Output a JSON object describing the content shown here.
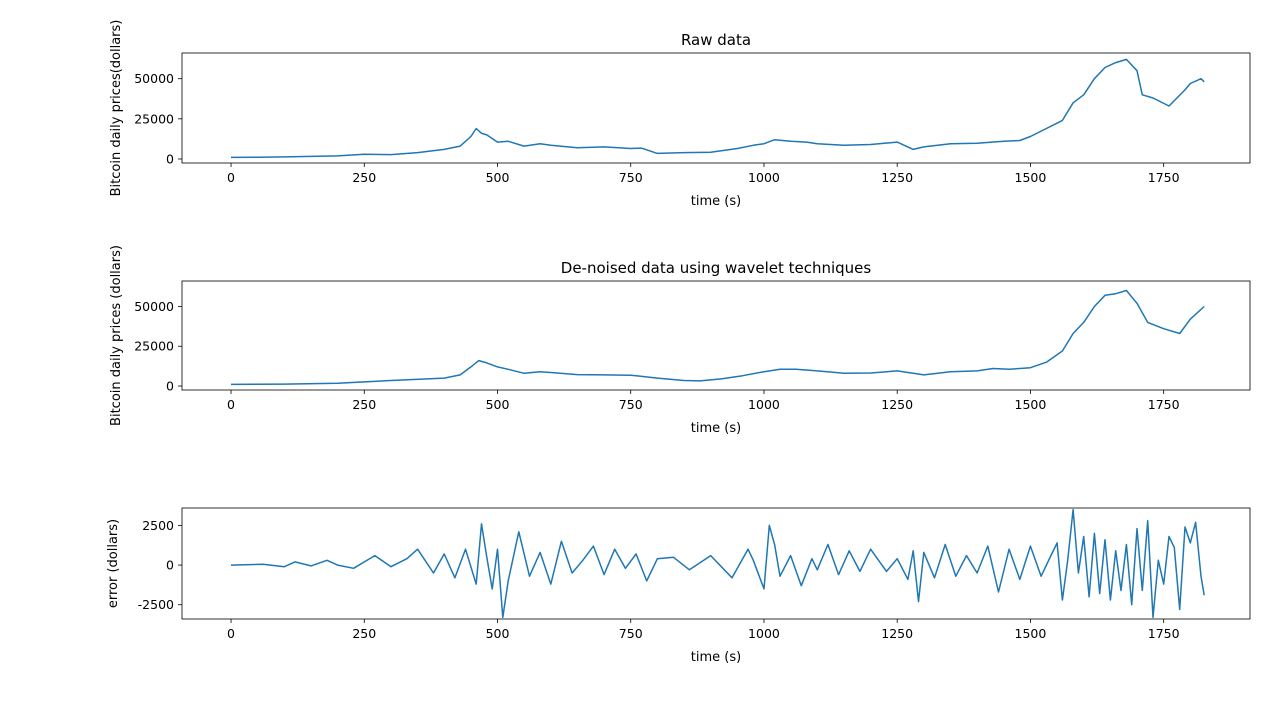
{
  "chart_data": [
    {
      "type": "line",
      "title": "Raw data",
      "xlabel": "time (s)",
      "ylabel": "Bitcoin daily prices(dollars)",
      "xlim": [
        -92,
        1912
      ],
      "ylim": [
        -2500,
        66000
      ],
      "xticks": [
        0,
        250,
        500,
        750,
        1000,
        1250,
        1500,
        1750
      ],
      "yticks": [
        0,
        25000,
        50000
      ],
      "grid": false,
      "color": "#1f77b4",
      "x": [
        0,
        50,
        100,
        150,
        200,
        250,
        300,
        350,
        400,
        430,
        450,
        460,
        470,
        480,
        500,
        520,
        550,
        580,
        600,
        650,
        700,
        750,
        770,
        800,
        850,
        900,
        950,
        980,
        1000,
        1020,
        1050,
        1080,
        1100,
        1150,
        1200,
        1250,
        1280,
        1300,
        1350,
        1400,
        1450,
        1480,
        1500,
        1530,
        1560,
        1580,
        1600,
        1620,
        1640,
        1660,
        1680,
        1700,
        1710,
        1730,
        1760,
        1790,
        1800,
        1820,
        1826
      ],
      "y": [
        1000,
        1100,
        1300,
        1600,
        1900,
        3000,
        2700,
        4000,
        6000,
        8000,
        14000,
        19000,
        16000,
        15000,
        10500,
        11000,
        8000,
        9500,
        8500,
        7000,
        7500,
        6500,
        6800,
        3500,
        4000,
        4200,
        6500,
        8500,
        9500,
        12000,
        11000,
        10500,
        9500,
        8500,
        9000,
        10500,
        6000,
        7500,
        9500,
        9800,
        11000,
        11500,
        14000,
        19000,
        24000,
        35000,
        40000,
        50000,
        57000,
        60000,
        62000,
        55000,
        40000,
        38000,
        33000,
        43000,
        47000,
        50000,
        48000
      ]
    },
    {
      "type": "line",
      "title": "De-noised data using wavelet techniques",
      "xlabel": "time (s)",
      "ylabel": "Bitcoin daily prices (dollars)",
      "xlim": [
        -92,
        1912
      ],
      "ylim": [
        -2500,
        66000
      ],
      "xticks": [
        0,
        250,
        500,
        750,
        1000,
        1250,
        1500,
        1750
      ],
      "yticks": [
        0,
        25000,
        50000
      ],
      "grid": false,
      "color": "#1f77b4",
      "x": [
        0,
        100,
        200,
        300,
        400,
        430,
        450,
        465,
        480,
        500,
        520,
        550,
        580,
        600,
        650,
        700,
        750,
        800,
        850,
        880,
        920,
        960,
        1000,
        1030,
        1060,
        1100,
        1150,
        1200,
        1250,
        1280,
        1300,
        1350,
        1400,
        1430,
        1460,
        1500,
        1530,
        1560,
        1580,
        1600,
        1620,
        1640,
        1660,
        1680,
        1700,
        1720,
        1750,
        1780,
        1800,
        1826
      ],
      "y": [
        1000,
        1200,
        1800,
        3500,
        5000,
        7000,
        12000,
        16000,
        14500,
        12000,
        10500,
        8000,
        9000,
        8500,
        7200,
        7000,
        6800,
        5000,
        3500,
        3200,
        4500,
        6500,
        9000,
        10500,
        10500,
        9500,
        8000,
        8200,
        9500,
        8000,
        7000,
        9000,
        9500,
        11000,
        10500,
        11500,
        15000,
        22000,
        33000,
        40000,
        50000,
        57000,
        58000,
        60000,
        52000,
        40000,
        36000,
        33000,
        42000,
        50000
      ]
    },
    {
      "type": "line",
      "title": "",
      "xlabel": "time (s)",
      "ylabel": "error (dollars)",
      "xlim": [
        -92,
        1912
      ],
      "ylim": [
        -3400,
        3600
      ],
      "xticks": [
        0,
        250,
        500,
        750,
        1000,
        1250,
        1500,
        1750
      ],
      "yticks": [
        -2500,
        0,
        2500
      ],
      "grid": false,
      "color": "#1f77b4",
      "x": [
        0,
        60,
        100,
        120,
        150,
        180,
        200,
        230,
        250,
        270,
        300,
        330,
        350,
        380,
        400,
        420,
        440,
        460,
        470,
        480,
        490,
        500,
        510,
        520,
        540,
        560,
        580,
        600,
        620,
        640,
        660,
        680,
        700,
        720,
        740,
        760,
        780,
        800,
        830,
        860,
        900,
        940,
        970,
        980,
        1000,
        1010,
        1020,
        1030,
        1050,
        1070,
        1090,
        1100,
        1120,
        1140,
        1160,
        1180,
        1200,
        1230,
        1250,
        1270,
        1280,
        1290,
        1300,
        1320,
        1340,
        1360,
        1380,
        1400,
        1420,
        1440,
        1460,
        1480,
        1500,
        1520,
        1540,
        1550,
        1560,
        1570,
        1580,
        1590,
        1600,
        1610,
        1620,
        1630,
        1640,
        1650,
        1660,
        1670,
        1680,
        1690,
        1700,
        1710,
        1720,
        1730,
        1740,
        1750,
        1760,
        1770,
        1780,
        1790,
        1800,
        1810,
        1820,
        1826
      ],
      "y": [
        0,
        50,
        -100,
        200,
        -50,
        300,
        0,
        -200,
        200,
        600,
        -100,
        400,
        1000,
        -500,
        700,
        -800,
        1000,
        -1200,
        2600,
        500,
        -1500,
        1000,
        -3300,
        -1000,
        2100,
        -700,
        800,
        -1200,
        1500,
        -500,
        300,
        1200,
        -600,
        1000,
        -200,
        700,
        -1000,
        400,
        500,
        -300,
        600,
        -800,
        1000,
        300,
        -1500,
        2500,
        1300,
        -700,
        600,
        -1300,
        400,
        -300,
        1300,
        -600,
        900,
        -400,
        1000,
        -400,
        400,
        -900,
        900,
        -2300,
        800,
        -800,
        1300,
        -700,
        600,
        -500,
        1200,
        -1700,
        1000,
        -900,
        1200,
        -700,
        700,
        1400,
        -2200,
        300,
        3500,
        -500,
        1800,
        -2000,
        2000,
        -1800,
        1600,
        -2200,
        900,
        -1600,
        1300,
        -2500,
        2300,
        -1600,
        2800,
        -3300,
        300,
        -1200,
        1800,
        1100,
        -2800,
        2400,
        1400,
        2700,
        -700,
        -1900
      ]
    }
  ]
}
